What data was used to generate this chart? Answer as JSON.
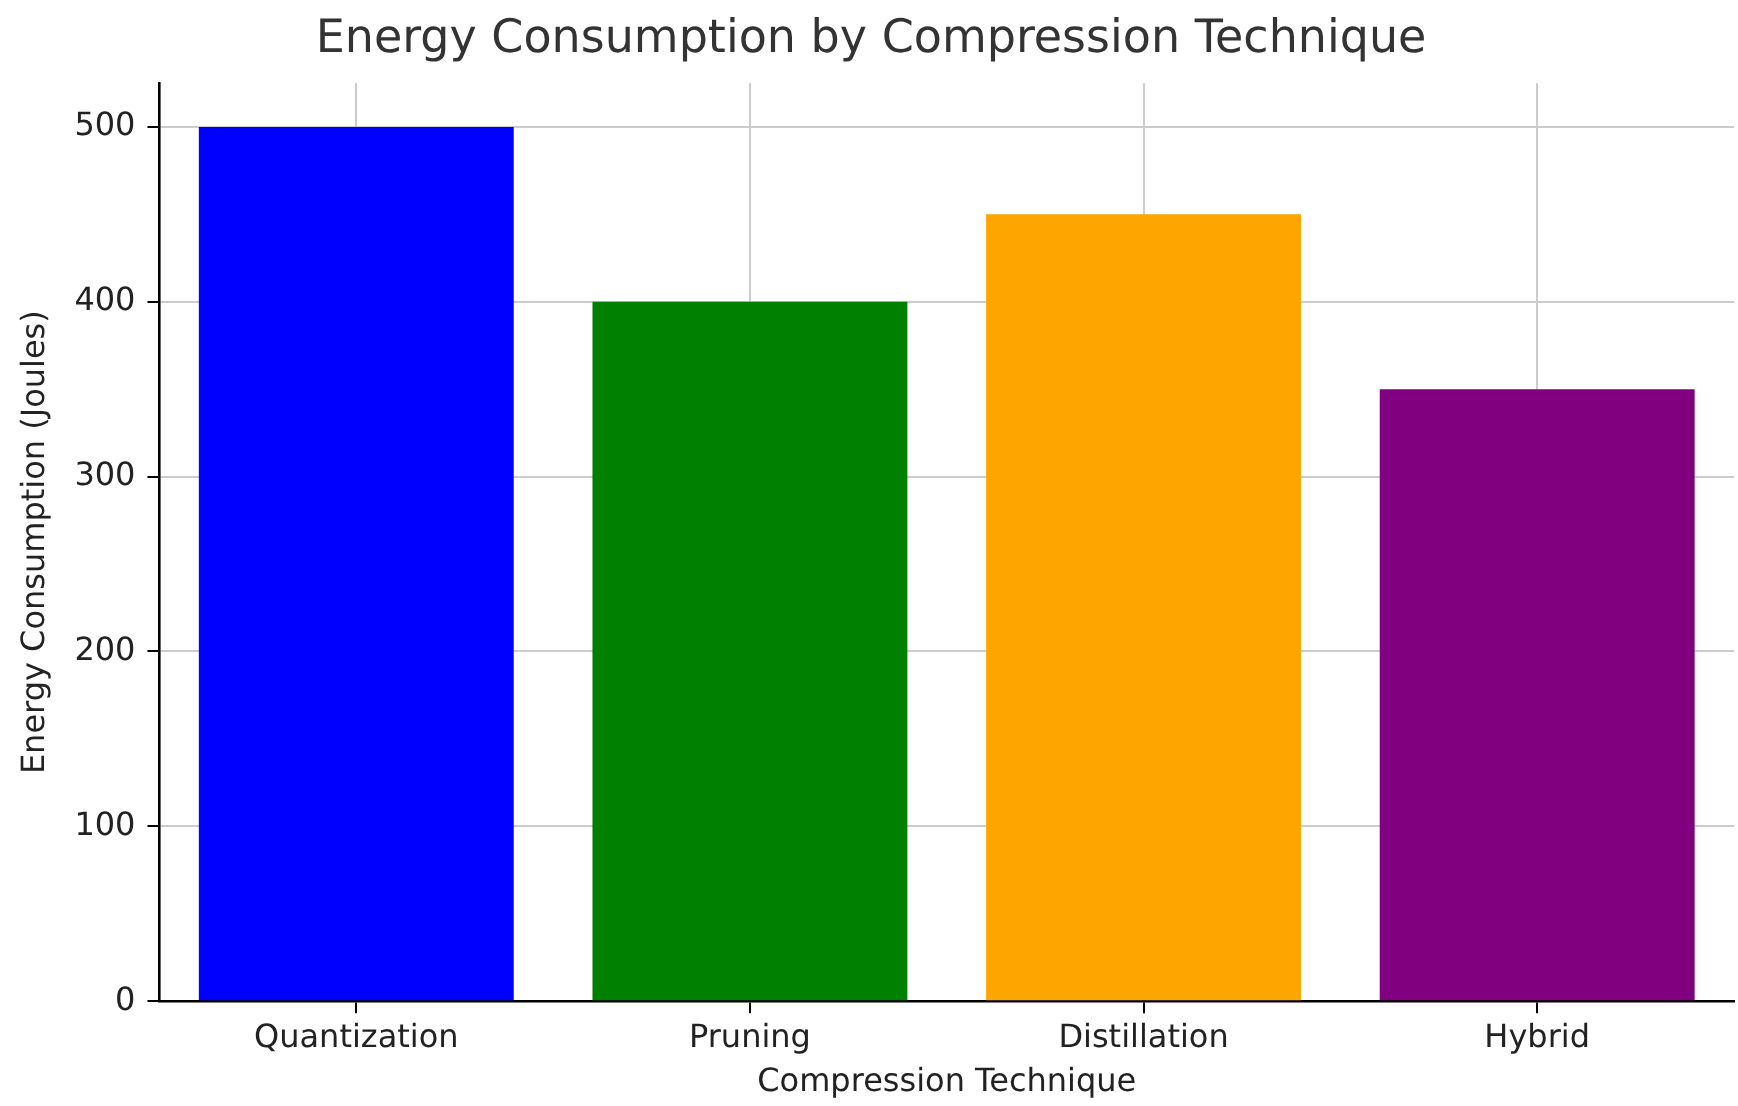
{
  "chart_data": {
    "type": "bar",
    "title": "Energy Consumption by Compression Technique",
    "xlabel": "Compression Technique",
    "ylabel": "Energy Consumption (Joules)",
    "categories": [
      "Quantization",
      "Pruning",
      "Distillation",
      "Hybrid"
    ],
    "values": [
      500,
      400,
      450,
      350
    ],
    "colors": [
      "#0000ff",
      "#008000",
      "#ffa500",
      "#800080"
    ],
    "ylim": [
      0,
      525
    ],
    "yticks": [
      0,
      100,
      200,
      300,
      400,
      500
    ],
    "grid": true
  }
}
